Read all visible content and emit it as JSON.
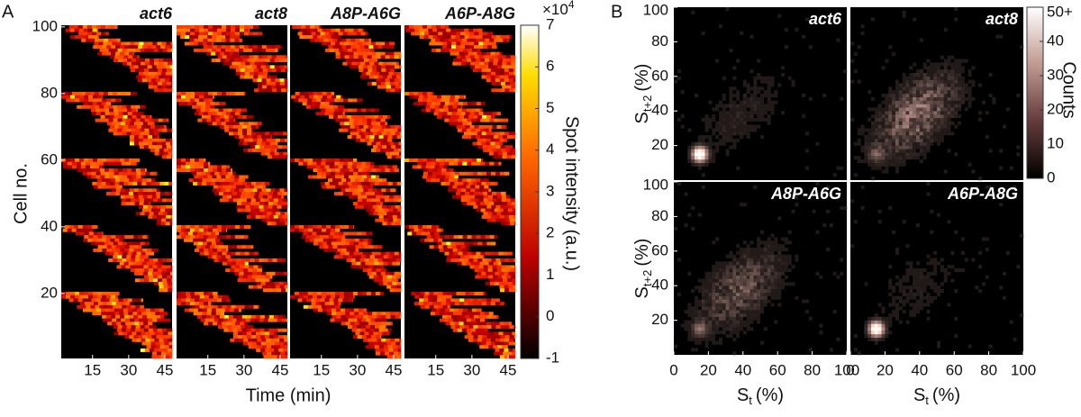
{
  "panel_a": {
    "label": "A",
    "y_label": "Cell no.",
    "x_label": "Time (min)",
    "ylim": [
      0.5,
      100.5
    ],
    "yticks": [
      20,
      40,
      60,
      80,
      100
    ],
    "xlim": [
      2,
      48
    ],
    "xticks": [
      15,
      30,
      45
    ],
    "subplots": [
      {
        "title": "act6"
      },
      {
        "title": "act8"
      },
      {
        "title": "A8P-A6G"
      },
      {
        "title": "A6P-A8G"
      }
    ],
    "colorbar": {
      "label": "Spot intensity (a.u.)",
      "multiplier": "×10",
      "exponent": "4",
      "lim": [
        -1,
        7
      ],
      "ticks": [
        -1,
        0,
        1,
        2,
        3,
        4,
        5,
        6,
        7
      ]
    }
  },
  "panel_b": {
    "label": "B",
    "x_label": {
      "base": "S",
      "sub": "t",
      "unit": "(%)"
    },
    "y_label": {
      "base": "S",
      "sub": "t+2",
      "unit": "(%)"
    },
    "xlim": [
      0,
      100
    ],
    "xticks": [
      0,
      20,
      40,
      60,
      80,
      100
    ],
    "ylim": [
      0,
      100
    ],
    "yticks": [
      20,
      40,
      60,
      80,
      100
    ],
    "subplots": [
      {
        "title": "act6"
      },
      {
        "title": "act8"
      },
      {
        "title": "A8P-A6G"
      },
      {
        "title": "A6P-A8G"
      }
    ],
    "colorbar": {
      "label": "Counts",
      "lim": [
        0,
        50
      ],
      "ticks": [
        0,
        10,
        20,
        30,
        40,
        {
          "value": 50,
          "label": "50+"
        }
      ]
    }
  }
}
